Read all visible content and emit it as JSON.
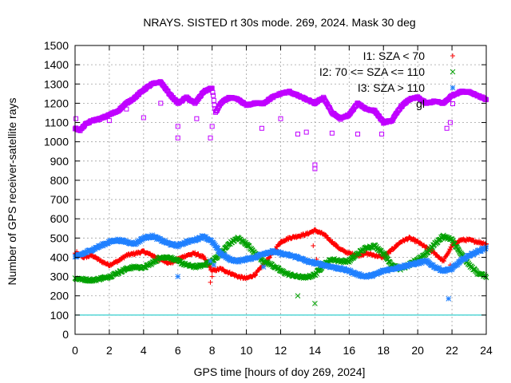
{
  "chart_data": {
    "type": "scatter",
    "title": "NRAYS. SISTED rt 30s mode. 269, 2024. Mask 30 deg",
    "xlabel": "GPS time [hours of doy 269, 2024]",
    "ylabel": "Number of GPS receiver-satellite rays",
    "xlim": [
      0,
      24
    ],
    "ylim": [
      0,
      1500
    ],
    "xticks": [
      "0",
      "2",
      "4",
      "6",
      "8",
      "10",
      "12",
      "14",
      "16",
      "18",
      "20",
      "22",
      "24"
    ],
    "yticks": [
      "0",
      "100",
      "200",
      "300",
      "400",
      "500",
      "600",
      "700",
      "800",
      "900",
      "1000",
      "1100",
      "1200",
      "1300",
      "1400",
      "1500"
    ],
    "grid": true,
    "legend_position": "top-right",
    "threshold_line": {
      "y": 100,
      "color": "#00c0c0"
    },
    "series": [
      {
        "name": "I1: SZA < 70",
        "marker": "+",
        "color": "#ff0000",
        "points": [
          [
            0,
            420
          ],
          [
            0.5,
            400
          ],
          [
            1,
            410
          ],
          [
            1.5,
            380
          ],
          [
            2,
            360
          ],
          [
            2.5,
            380
          ],
          [
            3,
            410
          ],
          [
            3.5,
            420
          ],
          [
            4,
            430
          ],
          [
            4.5,
            410
          ],
          [
            5,
            390
          ],
          [
            5.5,
            370
          ],
          [
            6,
            390
          ],
          [
            6.5,
            410
          ],
          [
            7,
            420
          ],
          [
            7.5,
            400
          ],
          [
            8,
            330
          ],
          [
            8.5,
            340
          ],
          [
            9,
            320
          ],
          [
            9.5,
            300
          ],
          [
            10,
            290
          ],
          [
            10.5,
            310
          ],
          [
            11,
            360
          ],
          [
            11.5,
            420
          ],
          [
            12,
            480
          ],
          [
            12.5,
            500
          ],
          [
            13,
            510
          ],
          [
            13.5,
            520
          ],
          [
            14,
            540
          ],
          [
            14.5,
            520
          ],
          [
            15,
            480
          ],
          [
            15.5,
            440
          ],
          [
            16,
            420
          ],
          [
            16.5,
            410
          ],
          [
            17,
            420
          ],
          [
            17.5,
            410
          ],
          [
            18,
            400
          ],
          [
            18.5,
            440
          ],
          [
            19,
            480
          ],
          [
            19.5,
            500
          ],
          [
            20,
            480
          ],
          [
            20.5,
            450
          ],
          [
            21,
            420
          ],
          [
            21.5,
            380
          ],
          [
            22,
            460
          ],
          [
            22.5,
            490
          ],
          [
            23,
            490
          ],
          [
            23.5,
            480
          ],
          [
            24,
            470
          ]
        ],
        "outliers": [
          [
            0.1,
            430
          ],
          [
            2.8,
            400
          ],
          [
            4.9,
            380
          ],
          [
            5.2,
            400
          ],
          [
            5.7,
            370
          ],
          [
            7.9,
            270
          ],
          [
            8.0,
            300
          ],
          [
            13.0,
            510
          ],
          [
            13.9,
            460
          ],
          [
            14.1,
            390
          ],
          [
            21.9,
            360
          ]
        ]
      },
      {
        "name": "I2: 70 <= SZA <= 110",
        "marker": "x",
        "color": "#00a000",
        "points": [
          [
            0,
            290
          ],
          [
            0.5,
            285
          ],
          [
            1,
            280
          ],
          [
            1.5,
            290
          ],
          [
            2,
            300
          ],
          [
            2.5,
            320
          ],
          [
            3,
            340
          ],
          [
            3.5,
            350
          ],
          [
            4,
            345
          ],
          [
            4.5,
            370
          ],
          [
            5,
            400
          ],
          [
            5.5,
            400
          ],
          [
            6,
            380
          ],
          [
            6.5,
            360
          ],
          [
            7,
            350
          ],
          [
            7.5,
            360
          ],
          [
            8,
            380
          ],
          [
            8.5,
            420
          ],
          [
            9,
            470
          ],
          [
            9.5,
            500
          ],
          [
            10,
            470
          ],
          [
            10.5,
            420
          ],
          [
            11,
            380
          ],
          [
            11.5,
            360
          ],
          [
            12,
            330
          ],
          [
            12.5,
            310
          ],
          [
            13,
            300
          ],
          [
            13.5,
            295
          ],
          [
            14,
            310
          ],
          [
            14.5,
            360
          ],
          [
            15,
            390
          ],
          [
            15.5,
            380
          ],
          [
            16,
            380
          ],
          [
            16.5,
            420
          ],
          [
            17,
            450
          ],
          [
            17.5,
            460
          ],
          [
            18,
            420
          ],
          [
            18.5,
            360
          ],
          [
            19,
            340
          ],
          [
            19.5,
            360
          ],
          [
            20,
            390
          ],
          [
            20.5,
            420
          ],
          [
            21,
            470
          ],
          [
            21.5,
            510
          ],
          [
            22,
            490
          ],
          [
            22.5,
            420
          ],
          [
            23,
            360
          ],
          [
            23.5,
            320
          ],
          [
            24,
            300
          ]
        ],
        "outliers": [
          [
            13.0,
            200
          ],
          [
            14.0,
            160
          ]
        ]
      },
      {
        "name": "I3: SZA > 110",
        "marker": "*",
        "color": "#2080ff",
        "points": [
          [
            0,
            400
          ],
          [
            0.5,
            420
          ],
          [
            1,
            440
          ],
          [
            1.5,
            460
          ],
          [
            2,
            480
          ],
          [
            2.5,
            490
          ],
          [
            3,
            480
          ],
          [
            3.5,
            470
          ],
          [
            4,
            500
          ],
          [
            4.5,
            510
          ],
          [
            5,
            490
          ],
          [
            5.5,
            470
          ],
          [
            6,
            460
          ],
          [
            6.5,
            480
          ],
          [
            7,
            490
          ],
          [
            7.5,
            510
          ],
          [
            8,
            480
          ],
          [
            8.5,
            420
          ],
          [
            9,
            390
          ],
          [
            9.5,
            380
          ],
          [
            10,
            390
          ],
          [
            10.5,
            400
          ],
          [
            11,
            420
          ],
          [
            11.5,
            430
          ],
          [
            12,
            420
          ],
          [
            12.5,
            410
          ],
          [
            13,
            400
          ],
          [
            13.5,
            380
          ],
          [
            14,
            370
          ],
          [
            14.5,
            360
          ],
          [
            15,
            350
          ],
          [
            15.5,
            340
          ],
          [
            16,
            330
          ],
          [
            16.5,
            310
          ],
          [
            17,
            300
          ],
          [
            17.5,
            310
          ],
          [
            18,
            330
          ],
          [
            18.5,
            340
          ],
          [
            19,
            350
          ],
          [
            19.5,
            360
          ],
          [
            20,
            370
          ],
          [
            20.5,
            380
          ],
          [
            21,
            350
          ],
          [
            21.5,
            330
          ],
          [
            22,
            340
          ],
          [
            22.5,
            380
          ],
          [
            23,
            410
          ],
          [
            23.5,
            430
          ],
          [
            24,
            450
          ]
        ],
        "outliers": [
          [
            6.0,
            300
          ],
          [
            7.9,
            380
          ],
          [
            8.1,
            360
          ],
          [
            11.0,
            350
          ],
          [
            21.8,
            185
          ]
        ]
      },
      {
        "name": "gl",
        "marker": "square",
        "color": "#c000ff",
        "points": [
          [
            0,
            1070
          ],
          [
            0.3,
            1060
          ],
          [
            0.6,
            1090
          ],
          [
            1,
            1110
          ],
          [
            1.5,
            1120
          ],
          [
            2,
            1140
          ],
          [
            2.5,
            1160
          ],
          [
            3,
            1200
          ],
          [
            3.5,
            1230
          ],
          [
            4,
            1270
          ],
          [
            4.5,
            1300
          ],
          [
            5,
            1310
          ],
          [
            5.5,
            1250
          ],
          [
            6,
            1200
          ],
          [
            6.5,
            1230
          ],
          [
            7,
            1200
          ],
          [
            7.5,
            1260
          ],
          [
            8,
            1280
          ],
          [
            8.2,
            1150
          ],
          [
            8.5,
            1200
          ],
          [
            9,
            1230
          ],
          [
            9.5,
            1220
          ],
          [
            10,
            1190
          ],
          [
            10.5,
            1200
          ],
          [
            11,
            1200
          ],
          [
            11.5,
            1230
          ],
          [
            12,
            1250
          ],
          [
            12.5,
            1260
          ],
          [
            13,
            1240
          ],
          [
            13.5,
            1220
          ],
          [
            14,
            1200
          ],
          [
            14.5,
            1230
          ],
          [
            15,
            1150
          ],
          [
            15.5,
            1120
          ],
          [
            16,
            1140
          ],
          [
            16.5,
            1200
          ],
          [
            17,
            1170
          ],
          [
            17.5,
            1160
          ],
          [
            18,
            1100
          ],
          [
            18.5,
            1110
          ],
          [
            19,
            1180
          ],
          [
            19.5,
            1220
          ],
          [
            20,
            1230
          ],
          [
            20.5,
            1200
          ],
          [
            21,
            1210
          ],
          [
            21.5,
            1200
          ],
          [
            22,
            1240
          ],
          [
            22.5,
            1260
          ],
          [
            23,
            1260
          ],
          [
            23.5,
            1240
          ],
          [
            24,
            1220
          ]
        ],
        "outliers": [
          [
            0.05,
            1120
          ],
          [
            2.0,
            1110
          ],
          [
            3.0,
            1170
          ],
          [
            4.0,
            1125
          ],
          [
            5.0,
            1200
          ],
          [
            6.0,
            1080
          ],
          [
            6.0,
            1020
          ],
          [
            7.1,
            1120
          ],
          [
            7.9,
            1020
          ],
          [
            8.0,
            1080
          ],
          [
            10.9,
            1070
          ],
          [
            12.0,
            1120
          ],
          [
            13.0,
            1040
          ],
          [
            13.5,
            1050
          ],
          [
            14.0,
            880
          ],
          [
            14.0,
            860
          ],
          [
            15.0,
            1045
          ],
          [
            16.5,
            1040
          ],
          [
            17.9,
            1040
          ],
          [
            21.7,
            1070
          ],
          [
            21.9,
            1100
          ]
        ]
      }
    ]
  }
}
